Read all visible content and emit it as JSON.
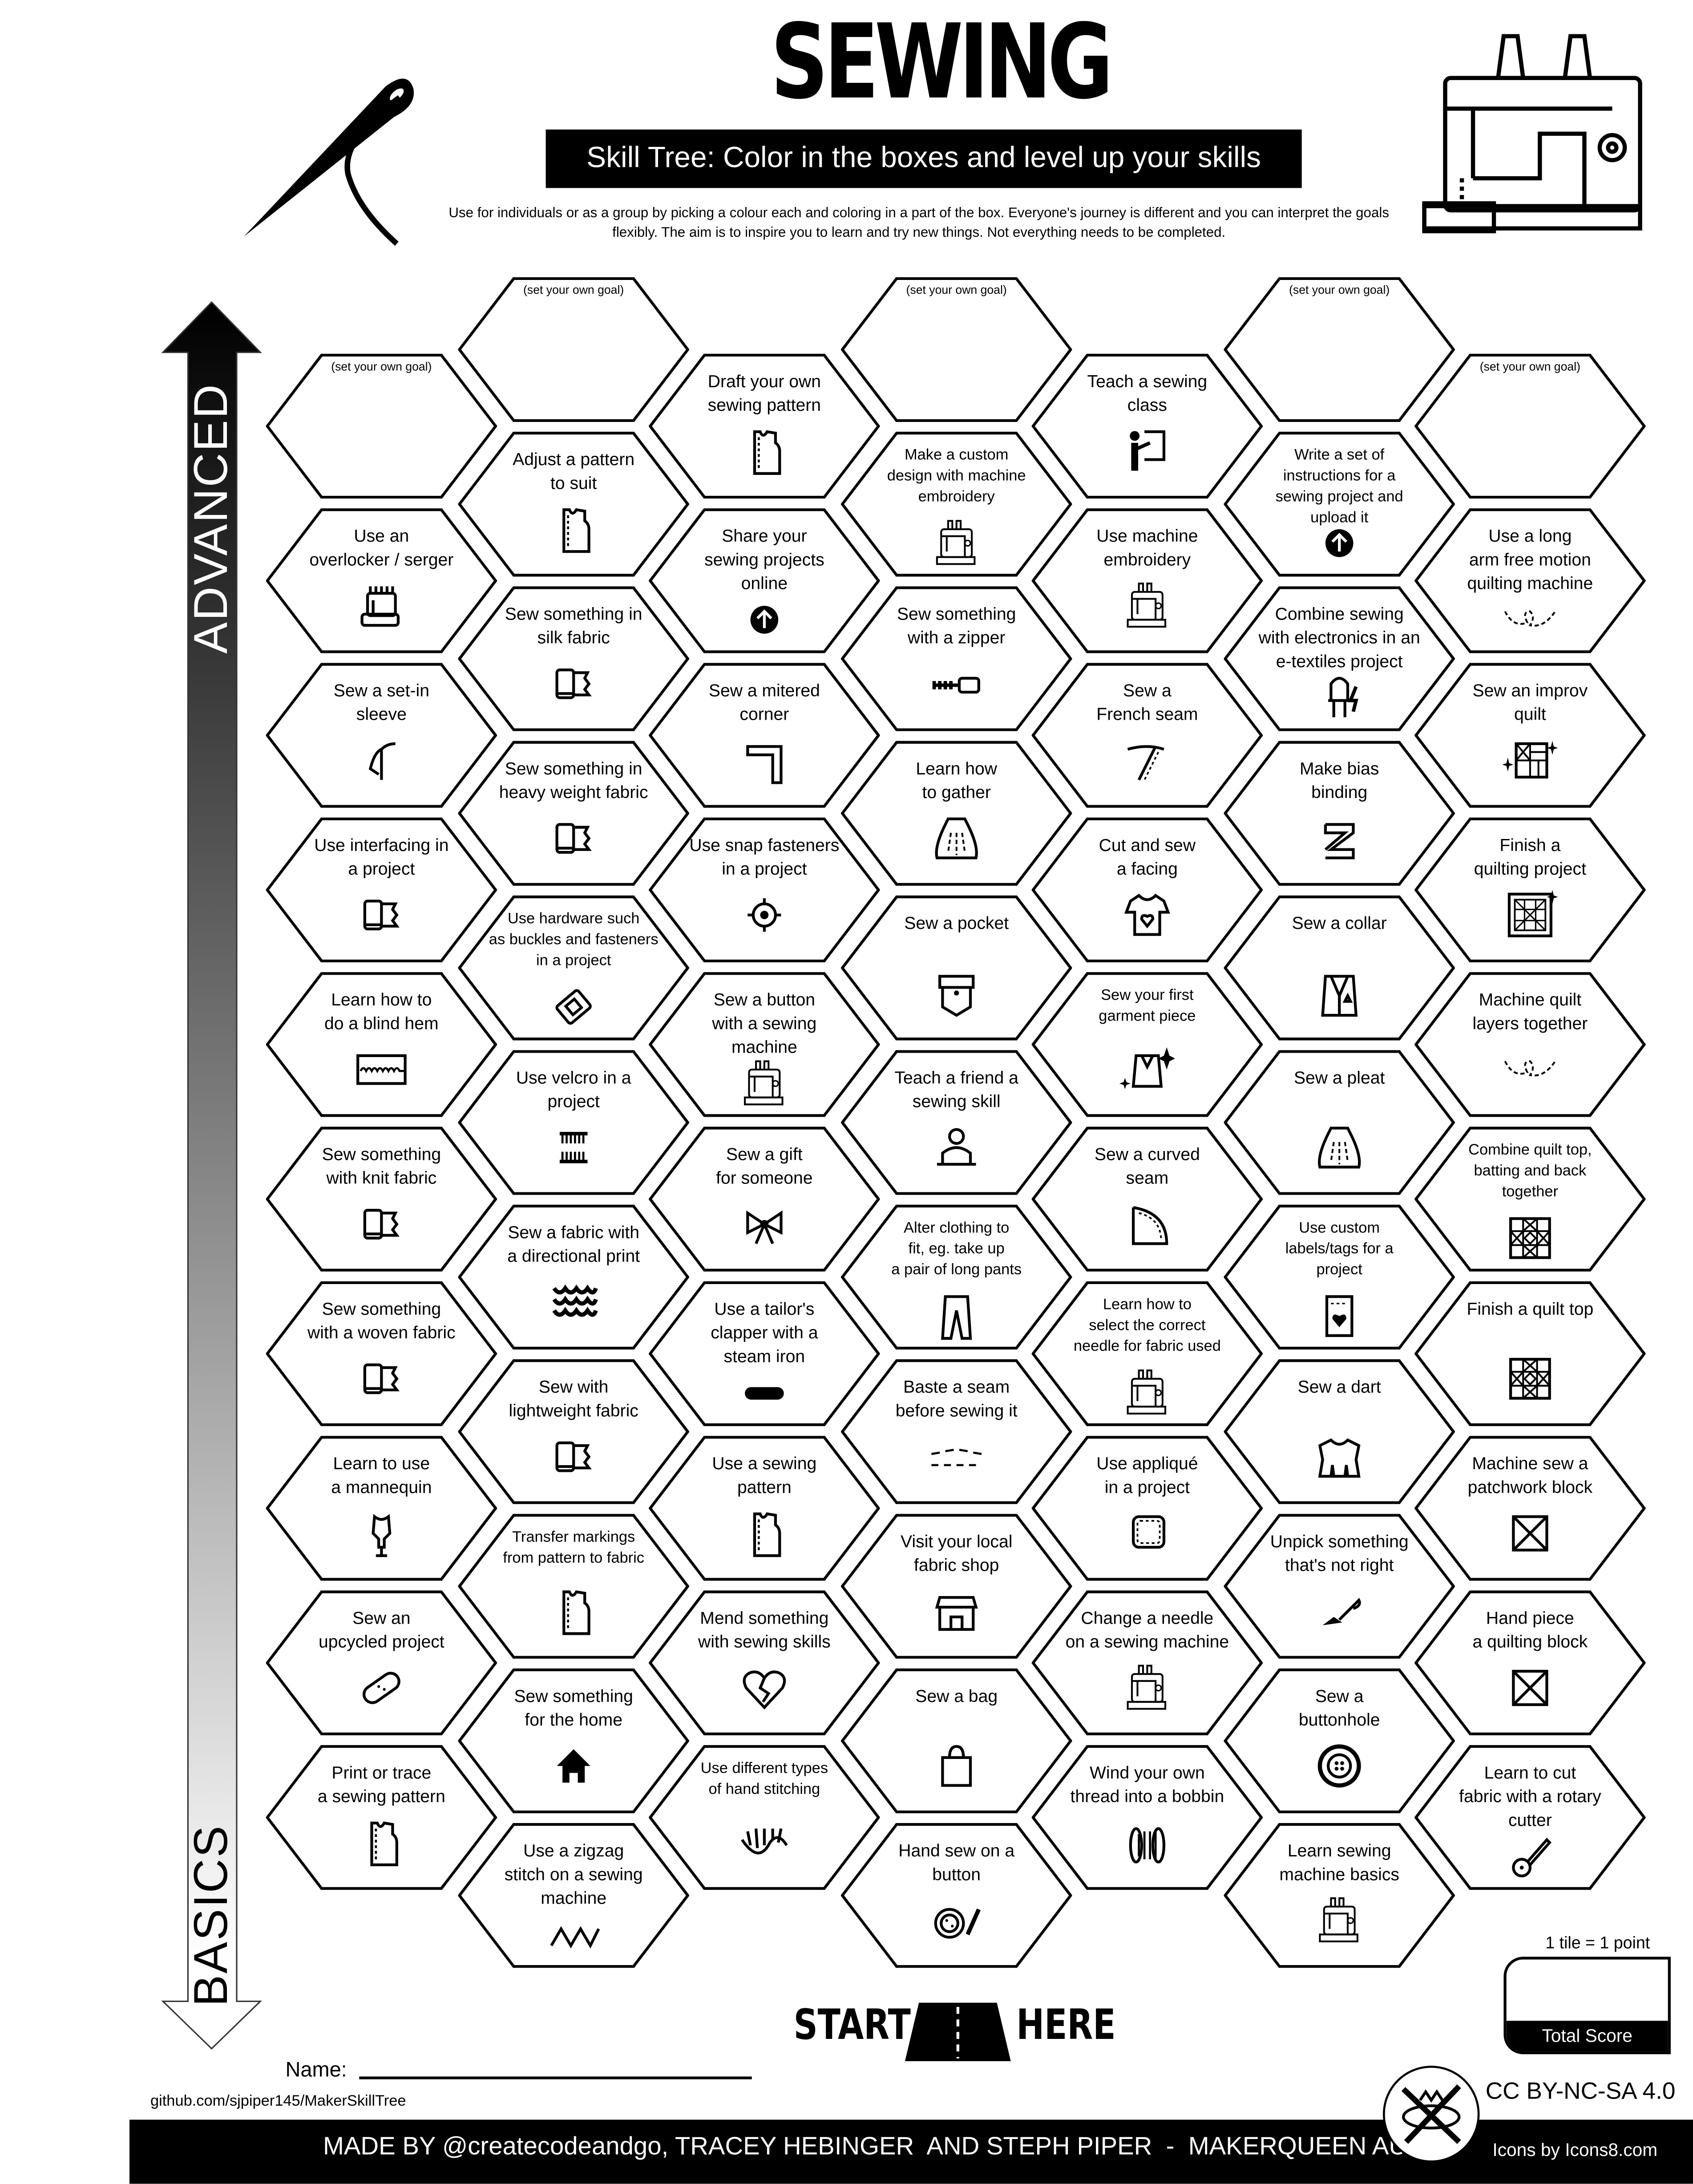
{
  "header": {
    "title": "SEWING",
    "subtitle": "Skill Tree:  Color in the boxes and level up your skills",
    "intro": "Use for individuals or as a group by picking a colour each and coloring in a part of the box.  Everyone's journey is different and you can interpret the goals flexibly.  The aim is to inspire you to learn and try new things. Not everything needs to be completed."
  },
  "axis": {
    "top_label": "ADVANCED",
    "bottom_label": "BASICS"
  },
  "columns": [
    [
      {
        "label": "(set your own goal)",
        "goal": true
      },
      {
        "label": "Use an\noverlocker / serger",
        "icon": "overlocker"
      },
      {
        "label": "Sew a set-in\nsleeve",
        "icon": "sleeve"
      },
      {
        "label": "Use interfacing in\na project",
        "icon": "fabric"
      },
      {
        "label": "Learn how to\ndo a blind hem",
        "icon": "blind-hem"
      },
      {
        "label": "Sew something\nwith knit fabric",
        "icon": "fabric"
      },
      {
        "label": "Sew something\nwith a woven fabric",
        "icon": "fabric"
      },
      {
        "label": "Learn to use\na mannequin",
        "icon": "mannequin"
      },
      {
        "label": "Sew an\nupcycled project",
        "icon": "bandage"
      },
      {
        "label": "Print or trace\na sewing pattern",
        "icon": "pattern"
      }
    ],
    [
      {
        "label": "(set your own goal)",
        "goal": true
      },
      {
        "label": "Adjust a pattern\nto suit",
        "icon": "pattern"
      },
      {
        "label": "Sew something in\nsilk fabric",
        "icon": "fabric"
      },
      {
        "label": "Sew something in\nheavy weight fabric",
        "icon": "fabric"
      },
      {
        "label": "Use hardware such\nas buckles and fasteners\nin a project",
        "icon": "buckle",
        "small": true
      },
      {
        "label": "Use velcro in a\nproject",
        "icon": "velcro"
      },
      {
        "label": "Sew a fabric with\na directional print",
        "icon": "scales"
      },
      {
        "label": "Sew with\nlightweight fabric",
        "icon": "fabric"
      },
      {
        "label": "Transfer markings\nfrom pattern to fabric",
        "icon": "pattern",
        "small": true
      },
      {
        "label": "Sew something\nfor the home",
        "icon": "home"
      },
      {
        "label": "Use a zigzag\nstitch on a sewing\nmachine",
        "icon": "zigzag"
      }
    ],
    [
      {
        "label": "Draft your own\nsewing pattern",
        "icon": "pattern"
      },
      {
        "label": "Share your\nsewing projects\nonline",
        "icon": "upload"
      },
      {
        "label": "Sew a mitered\ncorner",
        "icon": "corner"
      },
      {
        "label": "Use snap fasteners\nin a project",
        "icon": "snap"
      },
      {
        "label": "Sew a button\nwith a sewing\nmachine",
        "icon": "sewing-machine"
      },
      {
        "label": "Sew a gift\nfor someone",
        "icon": "bow"
      },
      {
        "label": "Use a tailor's\nclapper with a\nsteam iron",
        "icon": "clapper"
      },
      {
        "label": "Use a sewing\npattern",
        "icon": "pattern"
      },
      {
        "label": "Mend something\nwith sewing skills",
        "icon": "broken-heart"
      },
      {
        "label": "Use different types\nof hand stitching",
        "icon": "hand-stitch",
        "small": true
      }
    ],
    [
      {
        "label": "(set your own goal)",
        "goal": true
      },
      {
        "label": "Make a custom\ndesign with machine\nembroidery",
        "icon": "sewing-machine",
        "small": true
      },
      {
        "label": "Sew something\nwith a zipper",
        "icon": "zipper"
      },
      {
        "label": "Learn how\nto gather",
        "icon": "skirt"
      },
      {
        "label": "Sew a pocket",
        "icon": "pocket"
      },
      {
        "label": "Teach a friend a\nsewing skill",
        "icon": "teacher-laptop"
      },
      {
        "label": "Alter clothing to\nfit, eg. take up\na pair of long pants",
        "icon": "pants",
        "small": true
      },
      {
        "label": "Baste a seam\nbefore sewing it",
        "icon": "baste"
      },
      {
        "label": "Visit your local\nfabric shop",
        "icon": "shop"
      },
      {
        "label": "Sew a bag",
        "icon": "bag"
      },
      {
        "label": "Hand sew on a\nbutton",
        "icon": "button-needle"
      }
    ],
    [
      {
        "label": "Teach a sewing\nclass",
        "icon": "teacher"
      },
      {
        "label": "Use machine\nembroidery",
        "icon": "sewing-machine"
      },
      {
        "label": "Sew a\nFrench seam",
        "icon": "needle-thread"
      },
      {
        "label": "Cut and sew\na facing",
        "icon": "tshirt"
      },
      {
        "label": "Sew your first\ngarment piece",
        "icon": "jacket-sparkle",
        "small": true
      },
      {
        "label": "Sew a curved\nseam",
        "icon": "curve"
      },
      {
        "label": "Learn how to\nselect the correct\nneedle for fabric used",
        "icon": "sewing-machine",
        "small": true
      },
      {
        "label": "Use appliqué\nin a project",
        "icon": "applique"
      },
      {
        "label": "Change a needle\non a sewing machine",
        "icon": "sewing-machine"
      },
      {
        "label": "Wind your own\nthread into a bobbin",
        "icon": "spool"
      }
    ],
    [
      {
        "label": "(set your own goal)",
        "goal": true
      },
      {
        "label": "Write a set of\ninstructions for a\nsewing project and\nupload it",
        "icon": "upload",
        "small": true
      },
      {
        "label": "Combine sewing\nwith electronics in an\ne-textiles project",
        "icon": "led"
      },
      {
        "label": "Make bias\nbinding",
        "icon": "bias-tape"
      },
      {
        "label": "Sew a collar",
        "icon": "collar"
      },
      {
        "label": "Sew a pleat",
        "icon": "skirt"
      },
      {
        "label": "Use custom\nlabels/tags for a\nproject",
        "icon": "label",
        "small": true
      },
      {
        "label": "Sew a dart",
        "icon": "bodice"
      },
      {
        "label": "Unpick something\nthat's not right",
        "icon": "seam-ripper"
      },
      {
        "label": "Sew a\nbuttonhole",
        "icon": "button"
      },
      {
        "label": "Learn sewing\nmachine basics",
        "icon": "sewing-machine"
      }
    ],
    [
      {
        "label": "(set your own goal)",
        "goal": true
      },
      {
        "label": "Use a long\narm free motion\nquilting machine",
        "icon": "dashed-heart"
      },
      {
        "label": "Sew an improv\nquilt",
        "icon": "quilt-sparkle"
      },
      {
        "label": "Finish a\nquilting project",
        "icon": "quilt-frame"
      },
      {
        "label": "Machine quilt\nlayers together",
        "icon": "dashed-heart"
      },
      {
        "label": "Combine quilt top,\nbatting and back\ntogether",
        "icon": "quilt",
        "small": true
      },
      {
        "label": "Finish a quilt top",
        "icon": "quilt"
      },
      {
        "label": "Machine sew a\npatchwork block",
        "icon": "x-box"
      },
      {
        "label": "Hand piece\na quilting block",
        "icon": "x-box"
      },
      {
        "label": "Learn to cut\nfabric with a rotary\ncutter",
        "icon": "rotary-cutter"
      }
    ]
  ],
  "start": {
    "left": "START",
    "right": "HERE"
  },
  "score": {
    "note": "1 tile = 1 point",
    "label": "Total Score"
  },
  "name_label": "Name:",
  "github": "github.com/sjpiper145/MakerSkillTree",
  "license": "CC BY-NC-SA 4.0",
  "footer": {
    "made_by": "MADE BY @createcodeandgo, TRACEY HEBINGER  AND STEPH PIPER  -  MAKERQUEEN AU",
    "icons_credit": "Icons by Icons8.com"
  }
}
